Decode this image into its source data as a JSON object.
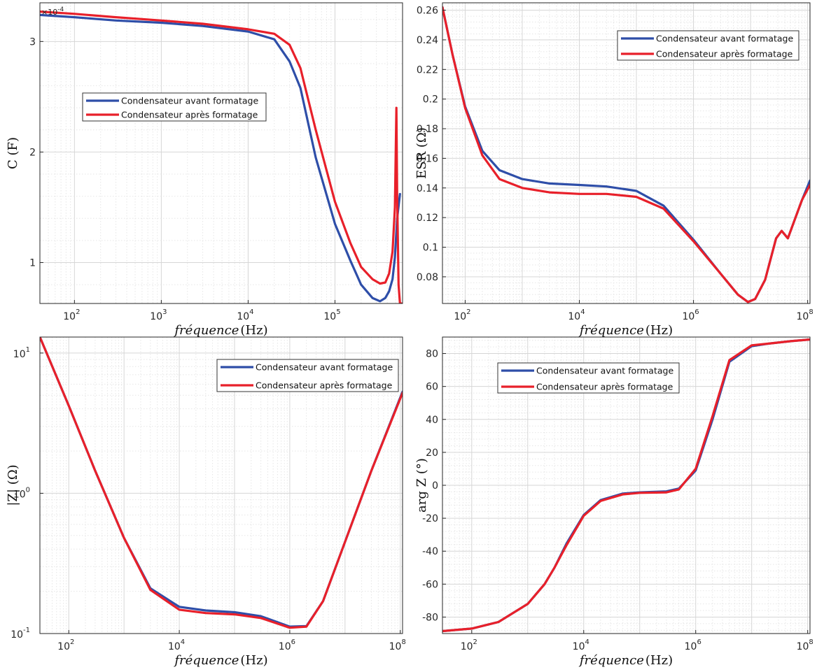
{
  "colors": {
    "avant": "#2e4ea8",
    "apres": "#e8202a"
  },
  "chart_data": [
    {
      "id": "capacitance",
      "type": "line",
      "xscale": "log",
      "yscale": "linear",
      "xlim": [
        40,
        600000
      ],
      "ylim": [
        6.3e-05,
        0.000335
      ],
      "xticks": [
        100,
        1000,
        10000,
        100000
      ],
      "xtick_labels": [
        [
          "10",
          "2"
        ],
        [
          "10",
          "3"
        ],
        [
          "10",
          "4"
        ],
        [
          "10",
          "5"
        ]
      ],
      "yticks": [
        0.0001,
        0.0002,
        0.0003
      ],
      "ytick_labels": [
        "1",
        "2",
        "3"
      ],
      "exponent_label": [
        "×10",
        "-4"
      ],
      "xlabel": [
        "fréquence",
        "(Hz)"
      ],
      "ylabel": "C (F)",
      "grid": true,
      "legend_position": "upper-left",
      "series": [
        {
          "name": "Condensateur avant formatage",
          "x": [
            40,
            100,
            300,
            1000,
            3000,
            10000,
            20000,
            30000,
            40000,
            60000,
            100000,
            150000,
            200000,
            270000,
            330000,
            380000,
            420000,
            460000,
            490000,
            520000,
            560000
          ],
          "y": [
            0.000324,
            0.000322,
            0.000319,
            0.000317,
            0.000314,
            0.000309,
            0.000302,
            0.000282,
            0.000258,
            0.000195,
            0.000135,
            0.000102,
            8e-05,
            6.8e-05,
            6.5e-05,
            6.8e-05,
            7.4e-05,
            8.5e-05,
            0.000105,
            0.00014,
            0.000162
          ]
        },
        {
          "name": "Condensateur après formatage",
          "x": [
            40,
            100,
            300,
            1000,
            3000,
            10000,
            20000,
            30000,
            40000,
            60000,
            100000,
            150000,
            200000,
            270000,
            330000,
            380000,
            420000,
            460000,
            490000,
            510000,
            520000,
            540000,
            560000,
            580000
          ],
          "y": [
            0.000327,
            0.000325,
            0.000322,
            0.000319,
            0.000316,
            0.000311,
            0.000307,
            0.000297,
            0.000276,
            0.00022,
            0.000155,
            0.000118,
            9.6e-05,
            8.5e-05,
            8.1e-05,
            8.2e-05,
            9e-05,
            0.00011,
            0.00015,
            0.00024,
            0.00016,
            8e-05,
            6.3e-05,
            6.3e-05
          ]
        }
      ]
    },
    {
      "id": "esr",
      "type": "line",
      "xscale": "log",
      "yscale": "linear",
      "xlim": [
        40,
        110000000
      ],
      "ylim": [
        0.062,
        0.265
      ],
      "xticks": [
        100,
        10000,
        1000000,
        100000000
      ],
      "xtick_labels": [
        [
          "10",
          "2"
        ],
        [
          "10",
          "4"
        ],
        [
          "10",
          "6"
        ],
        [
          "10",
          "8"
        ]
      ],
      "yticks": [
        0.08,
        0.1,
        0.12,
        0.14,
        0.16,
        0.18,
        0.2,
        0.22,
        0.24,
        0.26
      ],
      "ytick_labels": [
        "0.08",
        "0.1",
        "0.12",
        "0.14",
        "0.16",
        "0.18",
        "0.2",
        "0.22",
        "0.24",
        "0.26"
      ],
      "xlabel": [
        "fréquence",
        "(Hz)"
      ],
      "ylabel": "ESR (Ω)",
      "grid": true,
      "legend_position": "top-right",
      "series": [
        {
          "name": "Condensateur avant formatage",
          "x": [
            40,
            60,
            100,
            200,
            400,
            1000,
            3000,
            10000,
            30000,
            100000,
            300000,
            1000000,
            3000000,
            6000000,
            9000000,
            12000000,
            18000000,
            28000000,
            35000000,
            45000000,
            60000000,
            80000000,
            110000000
          ],
          "y": [
            0.262,
            0.23,
            0.195,
            0.165,
            0.152,
            0.146,
            0.143,
            0.142,
            0.141,
            0.138,
            0.128,
            0.105,
            0.082,
            0.068,
            0.063,
            0.065,
            0.078,
            0.106,
            0.111,
            0.106,
            0.119,
            0.132,
            0.145
          ]
        },
        {
          "name": "Condensateur après formatage",
          "x": [
            40,
            60,
            100,
            200,
            400,
            1000,
            3000,
            10000,
            30000,
            100000,
            300000,
            1000000,
            3000000,
            6000000,
            9000000,
            12000000,
            18000000,
            28000000,
            35000000,
            45000000,
            60000000,
            80000000,
            110000000
          ],
          "y": [
            0.262,
            0.23,
            0.194,
            0.162,
            0.146,
            0.14,
            0.137,
            0.136,
            0.136,
            0.134,
            0.126,
            0.104,
            0.082,
            0.068,
            0.063,
            0.065,
            0.078,
            0.106,
            0.111,
            0.106,
            0.119,
            0.132,
            0.142
          ]
        }
      ]
    },
    {
      "id": "impedance",
      "type": "line",
      "xscale": "log",
      "yscale": "log",
      "xlim": [
        30,
        110000000
      ],
      "ylim": [
        0.1,
        13
      ],
      "xticks": [
        100,
        10000,
        1000000,
        100000000
      ],
      "xtick_labels": [
        [
          "10",
          "2"
        ],
        [
          "10",
          "4"
        ],
        [
          "10",
          "6"
        ],
        [
          "10",
          "8"
        ]
      ],
      "yticks": [
        0.1,
        1,
        10
      ],
      "ytick_labels": [
        [
          "10",
          "-1"
        ],
        [
          "10",
          "0"
        ],
        [
          "10",
          "1"
        ]
      ],
      "xlabel": [
        "fréquence",
        "(Hz)"
      ],
      "ylabel": "|Z| (Ω)",
      "grid": true,
      "legend_position": "top-right",
      "series": [
        {
          "name": "Condensateur avant formatage",
          "x": [
            30,
            100,
            300,
            1000,
            3000,
            10000,
            30000,
            100000,
            300000,
            1000000,
            2000000,
            4000000,
            10000000,
            30000000,
            110000000
          ],
          "y": [
            13,
            4.2,
            1.45,
            0.48,
            0.21,
            0.155,
            0.146,
            0.142,
            0.133,
            0.112,
            0.113,
            0.17,
            0.45,
            1.45,
            5.3
          ]
        },
        {
          "name": "Condensateur après formatage",
          "x": [
            30,
            100,
            300,
            1000,
            3000,
            10000,
            30000,
            100000,
            300000,
            1000000,
            2000000,
            4000000,
            10000000,
            30000000,
            110000000
          ],
          "y": [
            13,
            4.2,
            1.45,
            0.48,
            0.205,
            0.148,
            0.14,
            0.137,
            0.129,
            0.11,
            0.112,
            0.17,
            0.45,
            1.45,
            5.2
          ]
        }
      ]
    },
    {
      "id": "phase",
      "type": "line",
      "xscale": "log",
      "yscale": "linear",
      "xlim": [
        30,
        110000000
      ],
      "ylim": [
        -90,
        90
      ],
      "xticks": [
        100,
        10000,
        1000000,
        100000000
      ],
      "xtick_labels": [
        [
          "10",
          "2"
        ],
        [
          "10",
          "4"
        ],
        [
          "10",
          "6"
        ],
        [
          "10",
          "8"
        ]
      ],
      "yticks": [
        -80,
        -60,
        -40,
        -20,
        0,
        20,
        40,
        60,
        80
      ],
      "ytick_labels": [
        "-80",
        "-60",
        "-40",
        "-20",
        "0",
        "20",
        "40",
        "60",
        "80"
      ],
      "xlabel": [
        "fréquence",
        "(Hz)"
      ],
      "ylabel": "arg Z (°)",
      "grid": true,
      "legend_position": "upper-left",
      "series": [
        {
          "name": "Condensateur avant formatage",
          "x": [
            30,
            100,
            300,
            1000,
            2000,
            3000,
            5000,
            10000,
            20000,
            50000,
            100000,
            300000,
            500000,
            1000000,
            2000000,
            4000000,
            10000000,
            20000000,
            50000000,
            110000000
          ],
          "y": [
            -88.5,
            -87,
            -83,
            -72,
            -60,
            -50,
            -35,
            -18,
            -9,
            -5,
            -4.3,
            -3.7,
            -2,
            9,
            40,
            75,
            84.5,
            86,
            87.5,
            88.5
          ]
        },
        {
          "name": "Condensateur après formatage",
          "x": [
            30,
            100,
            300,
            1000,
            2000,
            3000,
            5000,
            10000,
            20000,
            50000,
            100000,
            300000,
            500000,
            1000000,
            2000000,
            4000000,
            10000000,
            20000000,
            50000000,
            110000000
          ],
          "y": [
            -88.5,
            -87,
            -83,
            -72,
            -60,
            -50,
            -36,
            -18.5,
            -9.5,
            -5.5,
            -4.6,
            -4.3,
            -2.5,
            10,
            42,
            76,
            85,
            86,
            87.5,
            88.5
          ]
        }
      ]
    }
  ]
}
